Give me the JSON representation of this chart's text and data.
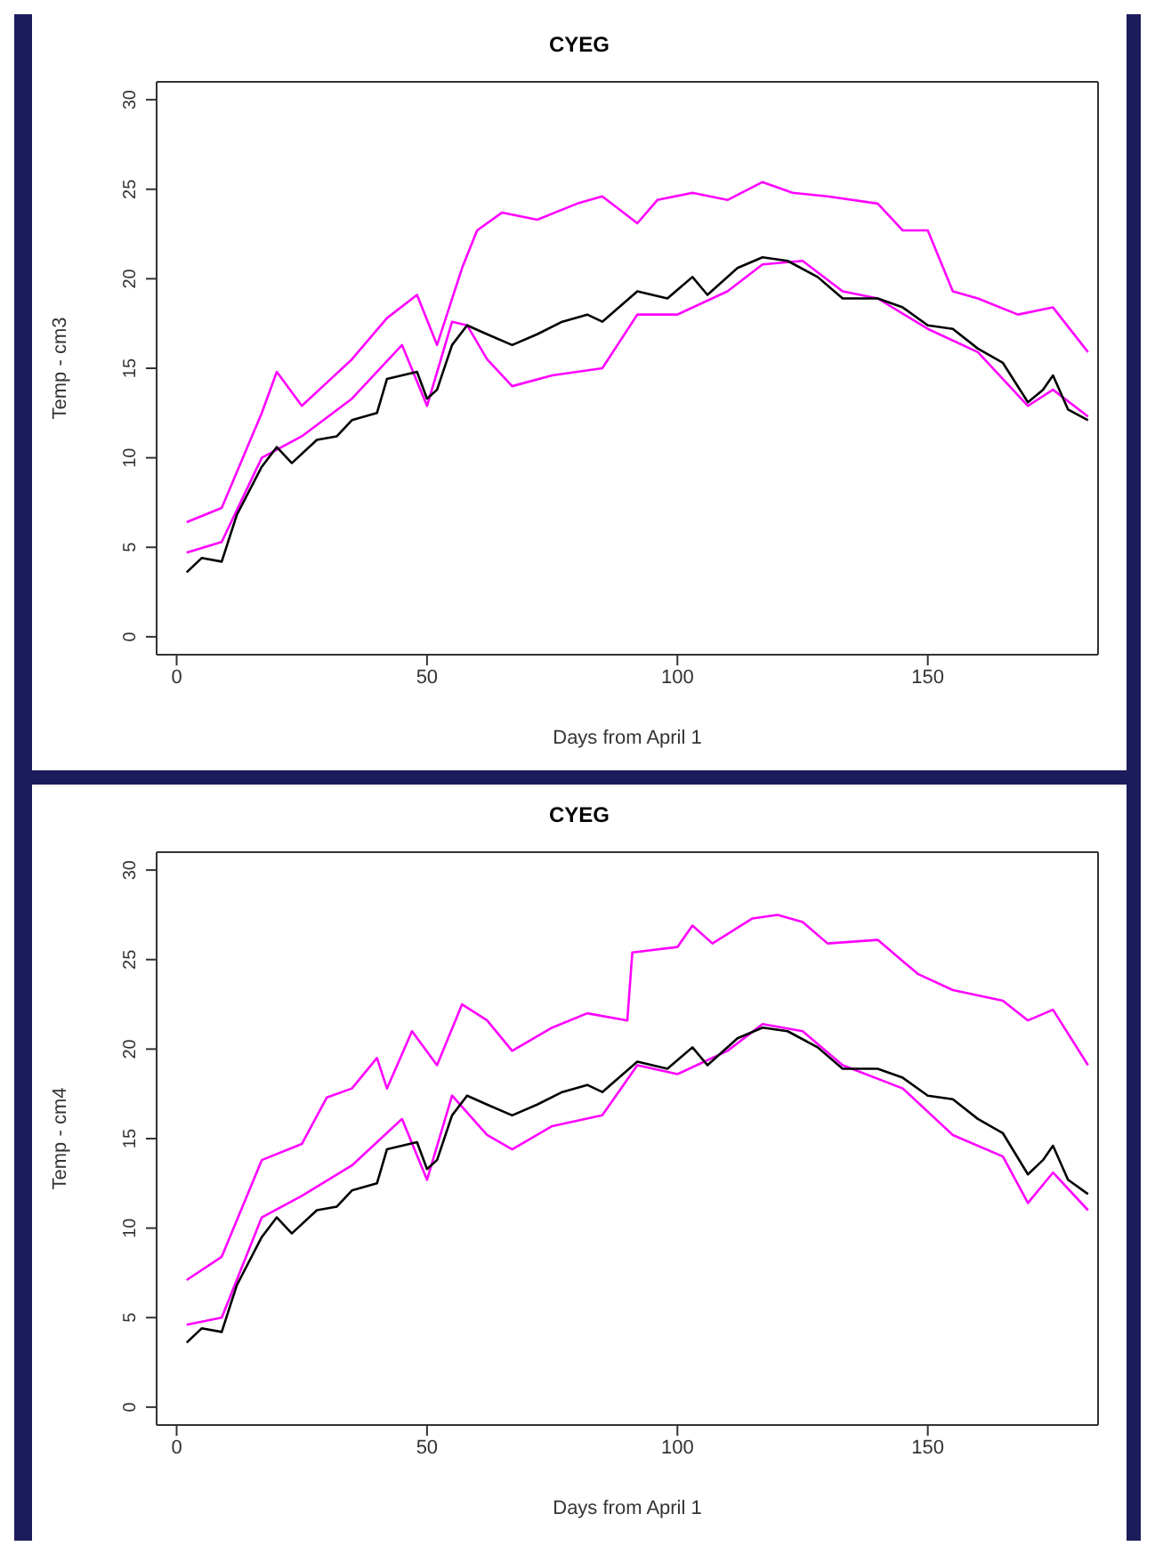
{
  "chart_data": [
    {
      "type": "line",
      "title": "CYEG",
      "xlabel": "Days from April 1",
      "ylabel": "Temp - cm3",
      "xlim": [
        -4,
        184
      ],
      "xticks": [
        0,
        50,
        100,
        150
      ],
      "ylim": [
        -1,
        31
      ],
      "yticks": [
        0,
        5,
        10,
        15,
        20,
        25,
        30
      ],
      "series": [
        {
          "color": "#ff00ff",
          "x": [
            2,
            9,
            17,
            20,
            25,
            30,
            35,
            42,
            48,
            52,
            57,
            60,
            65,
            72,
            80,
            85,
            92,
            96,
            103,
            110,
            117,
            123,
            130,
            140,
            145,
            150,
            155,
            160,
            168,
            175,
            182
          ],
          "values": [
            6.4,
            7.2,
            12.5,
            14.8,
            12.9,
            14.2,
            15.5,
            17.8,
            19.1,
            16.3,
            20.6,
            22.7,
            23.7,
            23.3,
            24.2,
            24.6,
            23.1,
            24.4,
            24.8,
            24.4,
            25.4,
            24.8,
            24.6,
            24.2,
            22.7,
            22.7,
            19.3,
            18.9,
            18,
            18.4,
            15.9
          ]
        },
        {
          "color": "#ff00ff",
          "x": [
            2,
            9,
            17,
            25,
            35,
            45,
            50,
            55,
            58,
            62,
            67,
            75,
            85,
            92,
            100,
            110,
            117,
            125,
            133,
            140,
            150,
            160,
            170,
            175,
            182
          ],
          "values": [
            4.7,
            5.3,
            10,
            11.2,
            13.3,
            16.3,
            12.9,
            17.6,
            17.4,
            15.5,
            14,
            14.6,
            15,
            18,
            18,
            19.3,
            20.8,
            21,
            19.3,
            18.9,
            17.2,
            15.9,
            12.9,
            13.8,
            12.3
          ]
        },
        {
          "color": "#000000",
          "x": [
            2,
            5,
            9,
            12,
            17,
            20,
            23,
            28,
            32,
            35,
            40,
            42,
            48,
            50,
            52,
            55,
            58,
            62,
            67,
            72,
            77,
            82,
            85,
            92,
            98,
            103,
            106,
            112,
            117,
            122,
            128,
            133,
            140,
            145,
            150,
            155,
            160,
            165,
            170,
            173,
            175,
            178,
            182
          ],
          "values": [
            3.6,
            4.4,
            4.2,
            6.8,
            9.5,
            10.6,
            9.7,
            11,
            11.2,
            12.1,
            12.5,
            14.4,
            14.8,
            13.3,
            13.8,
            16.3,
            17.4,
            16.9,
            16.3,
            16.9,
            17.6,
            18,
            17.6,
            19.3,
            18.9,
            20.1,
            19.1,
            20.6,
            21.2,
            21,
            20.1,
            18.9,
            18.9,
            18.4,
            17.4,
            17.2,
            16.1,
            15.3,
            13.1,
            13.8,
            14.6,
            12.7,
            12.1
          ]
        }
      ]
    },
    {
      "type": "line",
      "title": "CYEG",
      "xlabel": "Days from April 1",
      "ylabel": "Temp - cm4",
      "xlim": [
        -4,
        184
      ],
      "xticks": [
        0,
        50,
        100,
        150
      ],
      "ylim": [
        -1,
        31
      ],
      "yticks": [
        0,
        5,
        10,
        15,
        20,
        25,
        30
      ],
      "series": [
        {
          "color": "#ff00ff",
          "x": [
            2,
            9,
            17,
            25,
            30,
            35,
            40,
            42,
            47,
            52,
            57,
            62,
            67,
            75,
            82,
            90,
            91,
            100,
            103,
            107,
            115,
            120,
            125,
            130,
            140,
            148,
            155,
            165,
            170,
            175,
            182
          ],
          "values": [
            7.1,
            8.4,
            13.8,
            14.7,
            17.3,
            17.8,
            19.5,
            17.8,
            21,
            19.1,
            22.5,
            21.6,
            19.9,
            21.2,
            22,
            21.6,
            25.4,
            25.7,
            26.9,
            25.9,
            27.3,
            27.5,
            27.1,
            25.9,
            26.1,
            24.2,
            23.3,
            22.7,
            21.6,
            22.2,
            19.1
          ]
        },
        {
          "color": "#ff00ff",
          "x": [
            2,
            9,
            17,
            25,
            35,
            45,
            50,
            55,
            62,
            67,
            75,
            85,
            92,
            100,
            110,
            117,
            125,
            133,
            145,
            155,
            165,
            170,
            175,
            182
          ],
          "values": [
            4.6,
            5,
            10.6,
            11.8,
            13.5,
            16.1,
            12.7,
            17.4,
            15.2,
            14.4,
            15.7,
            16.3,
            19.1,
            18.6,
            19.9,
            21.4,
            21,
            19.1,
            17.8,
            15.2,
            14,
            11.4,
            13.1,
            11
          ]
        },
        {
          "color": "#000000",
          "x": [
            2,
            5,
            9,
            12,
            17,
            20,
            23,
            28,
            32,
            35,
            40,
            42,
            48,
            50,
            52,
            55,
            58,
            62,
            67,
            72,
            77,
            82,
            85,
            92,
            98,
            103,
            106,
            112,
            117,
            122,
            128,
            133,
            140,
            145,
            150,
            155,
            160,
            165,
            170,
            173,
            175,
            178,
            182
          ],
          "values": [
            3.6,
            4.4,
            4.2,
            6.8,
            9.5,
            10.6,
            9.7,
            11,
            11.2,
            12.1,
            12.5,
            14.4,
            14.8,
            13.3,
            13.8,
            16.3,
            17.4,
            16.9,
            16.3,
            16.9,
            17.6,
            18,
            17.6,
            19.3,
            18.9,
            20.1,
            19.1,
            20.6,
            21.2,
            21,
            20.1,
            18.9,
            18.9,
            18.4,
            17.4,
            17.2,
            16.1,
            15.3,
            13,
            13.8,
            14.6,
            12.7,
            11.9
          ]
        }
      ]
    }
  ]
}
